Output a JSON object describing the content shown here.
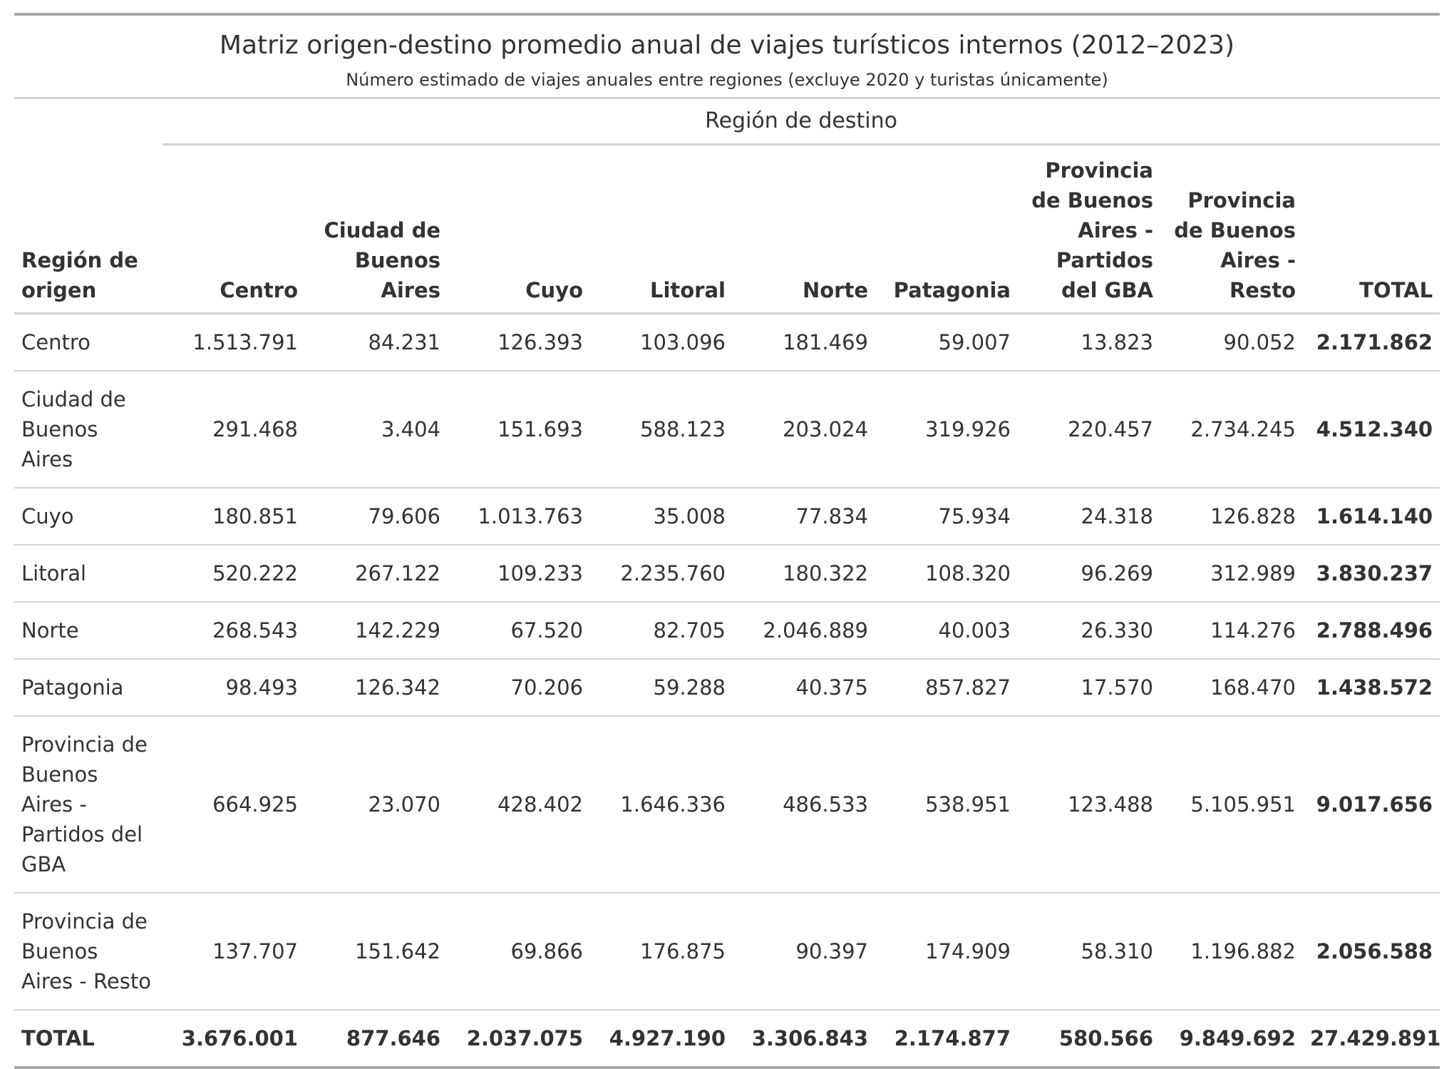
{
  "chart_data": {
    "type": "table",
    "title": "Matriz origen-destino promedio anual de viajes turísticos internos (2012–2023)",
    "subtitle": "Número estimado de viajes anuales entre regiones (excluye 2020 y turistas únicamente)",
    "spanner": "Región de destino",
    "stub_header": "Región de origen",
    "columns": [
      "Centro",
      "Ciudad de Buenos Aires",
      "Cuyo",
      "Litoral",
      "Norte",
      "Patagonia",
      "Provincia de Buenos Aires - Partidos del GBA",
      "Provincia de Buenos Aires - Resto",
      "TOTAL"
    ],
    "rows": [
      {
        "origin": "Centro",
        "values": [
          "1.513.791",
          "84.231",
          "126.393",
          "103.096",
          "181.469",
          "59.007",
          "13.823",
          "90.052",
          "2.171.862"
        ]
      },
      {
        "origin": "Ciudad de Buenos Aires",
        "values": [
          "291.468",
          "3.404",
          "151.693",
          "588.123",
          "203.024",
          "319.926",
          "220.457",
          "2.734.245",
          "4.512.340"
        ]
      },
      {
        "origin": "Cuyo",
        "values": [
          "180.851",
          "79.606",
          "1.013.763",
          "35.008",
          "77.834",
          "75.934",
          "24.318",
          "126.828",
          "1.614.140"
        ]
      },
      {
        "origin": "Litoral",
        "values": [
          "520.222",
          "267.122",
          "109.233",
          "2.235.760",
          "180.322",
          "108.320",
          "96.269",
          "312.989",
          "3.830.237"
        ]
      },
      {
        "origin": "Norte",
        "values": [
          "268.543",
          "142.229",
          "67.520",
          "82.705",
          "2.046.889",
          "40.003",
          "26.330",
          "114.276",
          "2.788.496"
        ]
      },
      {
        "origin": "Patagonia",
        "values": [
          "98.493",
          "126.342",
          "70.206",
          "59.288",
          "40.375",
          "857.827",
          "17.570",
          "168.470",
          "1.438.572"
        ]
      },
      {
        "origin": "Provincia de Buenos Aires - Partidos del GBA",
        "values": [
          "664.925",
          "23.070",
          "428.402",
          "1.646.336",
          "486.533",
          "538.951",
          "123.488",
          "5.105.951",
          "9.017.656"
        ]
      },
      {
        "origin": "Provincia de Buenos Aires - Resto",
        "values": [
          "137.707",
          "151.642",
          "69.866",
          "176.875",
          "90.397",
          "174.909",
          "58.310",
          "1.196.882",
          "2.056.588"
        ]
      }
    ],
    "total_row": {
      "origin": "TOTAL",
      "values": [
        "3.676.001",
        "877.646",
        "2.037.075",
        "4.927.190",
        "3.306.843",
        "2.174.877",
        "580.566",
        "9.849.692",
        "27.429.891"
      ]
    }
  }
}
